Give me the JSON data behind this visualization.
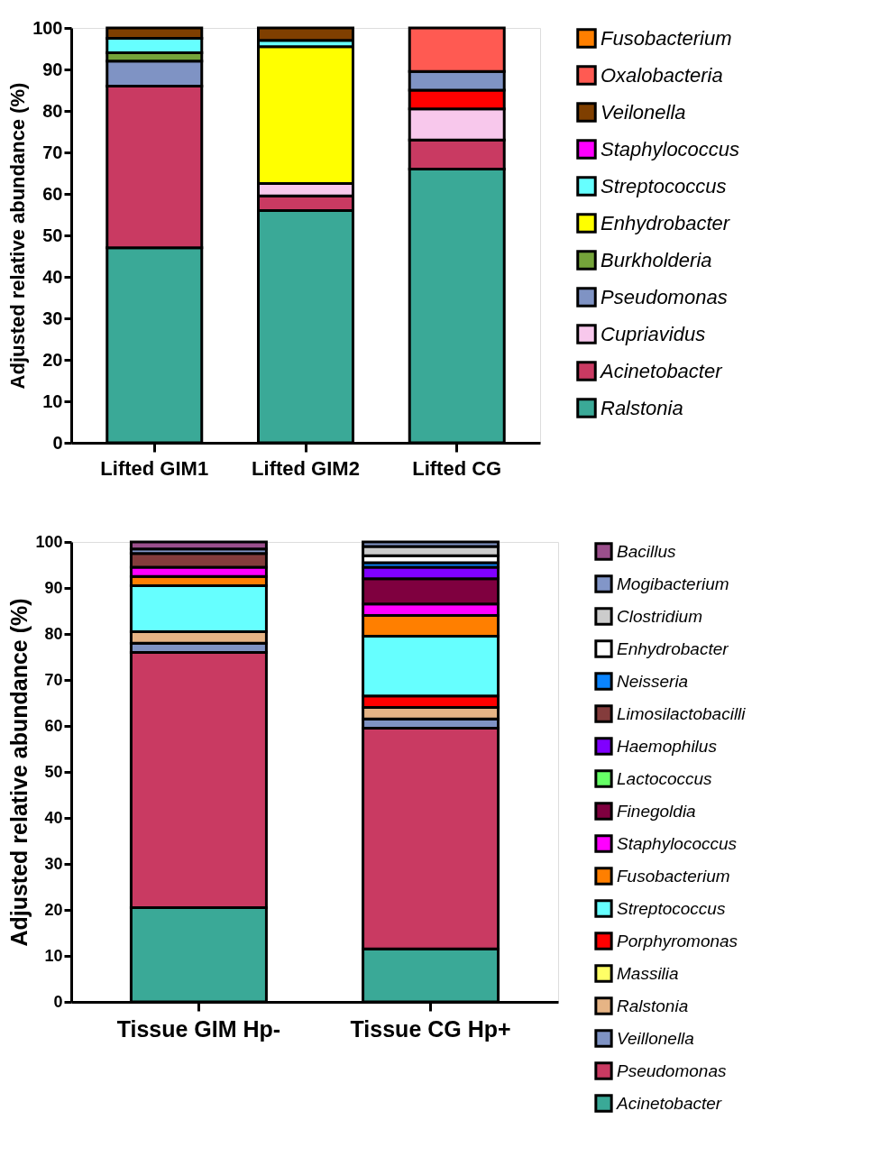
{
  "chart_data": [
    {
      "type": "bar",
      "stacked": true,
      "ylabel": "Adjusted relative abundance (%)",
      "categories": [
        "Lifted GIM1",
        "Lifted GIM2",
        "Lifted CG"
      ],
      "ylim": [
        0,
        100
      ],
      "yticks": [
        0,
        10,
        20,
        30,
        40,
        50,
        60,
        70,
        80,
        90,
        100
      ],
      "grid": false,
      "legend": "right",
      "series": [
        {
          "name": "Ralstonia",
          "color": "#3aa997",
          "values": [
            47,
            56,
            66
          ]
        },
        {
          "name": "Acinetobacter",
          "color": "#c93a62",
          "values": [
            39,
            3.5,
            7
          ]
        },
        {
          "name": "Cupriavidus",
          "color": "#f8c8ec",
          "values": [
            null,
            3,
            7.5
          ]
        },
        {
          "color": "#ff0000",
          "values": [
            null,
            null,
            4.5
          ]
        },
        {
          "name": "Pseudomonas",
          "color": "#7f93c4",
          "values": [
            6,
            null,
            4.5
          ]
        },
        {
          "name": "Burkholderia",
          "color": "#75a43a",
          "values": [
            2,
            null,
            null
          ]
        },
        {
          "name": "Enhydrobacter",
          "color": "#ffff00",
          "values": [
            null,
            33,
            null
          ]
        },
        {
          "name": "Streptococcus",
          "color": "#66ffff",
          "values": [
            3.5,
            1.5,
            null
          ]
        },
        {
          "name": "Staphylococcus",
          "color": "#ff00ff",
          "values": [
            null,
            null,
            null
          ]
        },
        {
          "name": "Veilonella",
          "color": "#7f3f00",
          "values": [
            2.5,
            3,
            null
          ]
        },
        {
          "name": "Oxalobacteria",
          "color": "#ff5a52",
          "values": [
            null,
            null,
            10.5
          ]
        },
        {
          "name": "Fusobacterium",
          "color": "#ff7f00",
          "values": [
            null,
            null,
            null
          ]
        }
      ]
    },
    {
      "type": "bar",
      "stacked": true,
      "ylabel": "Adjusted relative abundance (%)",
      "categories": [
        "Tissue GIM Hp-",
        "Tissue CG Hp+"
      ],
      "ylim": [
        0,
        100
      ],
      "yticks": [
        0,
        10,
        20,
        30,
        40,
        50,
        60,
        70,
        80,
        90,
        100
      ],
      "grid": false,
      "legend": "right",
      "series": [
        {
          "name": "Acinetobacter",
          "color": "#3aa997",
          "values": [
            20.5,
            11.5
          ]
        },
        {
          "name": "Pseudomonas",
          "color": "#c93a62",
          "values": [
            55.5,
            48
          ]
        },
        {
          "name": "Veillonella",
          "color": "#7f93c4",
          "values": [
            2,
            2
          ]
        },
        {
          "name": "Ralstonia",
          "color": "#e6b485",
          "values": [
            2.5,
            2.5
          ]
        },
        {
          "name": "Massilia",
          "color": "#ffff66",
          "values": [
            null,
            null
          ]
        },
        {
          "name": "Porphyromonas",
          "color": "#ff0000",
          "values": [
            null,
            2.5
          ]
        },
        {
          "name": "Streptococcus",
          "color": "#66ffff",
          "values": [
            10,
            13
          ]
        },
        {
          "name": "Fusobacterium",
          "color": "#ff7f00",
          "values": [
            2,
            4.5
          ]
        },
        {
          "name": "Staphylococcus",
          "color": "#ff00ff",
          "values": [
            2,
            2.5
          ]
        },
        {
          "name": "Finegoldia",
          "color": "#7f003f",
          "values": [
            null,
            5.5
          ]
        },
        {
          "name": "Lactococcus",
          "color": "#66ff66",
          "values": [
            null,
            null
          ]
        },
        {
          "name": "Haemophilus",
          "color": "#8000ff",
          "values": [
            null,
            2.5
          ]
        },
        {
          "name": "Limosilactobacilli",
          "color": "#843c3c",
          "values": [
            3,
            null
          ]
        },
        {
          "name": "Neisseria",
          "color": "#0a84ff",
          "values": [
            null,
            1
          ]
        },
        {
          "name": "Enhydrobacter",
          "color": "#ffffff",
          "values": [
            null,
            1.5
          ]
        },
        {
          "name": "Clostridium",
          "color": "#cccccc",
          "values": [
            null,
            2
          ]
        },
        {
          "name": "Mogibacterium",
          "color": "#8296c8",
          "values": [
            1,
            1
          ]
        },
        {
          "name": "Bacillus",
          "color": "#9b4f8c",
          "values": [
            1.5,
            null
          ]
        }
      ]
    }
  ]
}
